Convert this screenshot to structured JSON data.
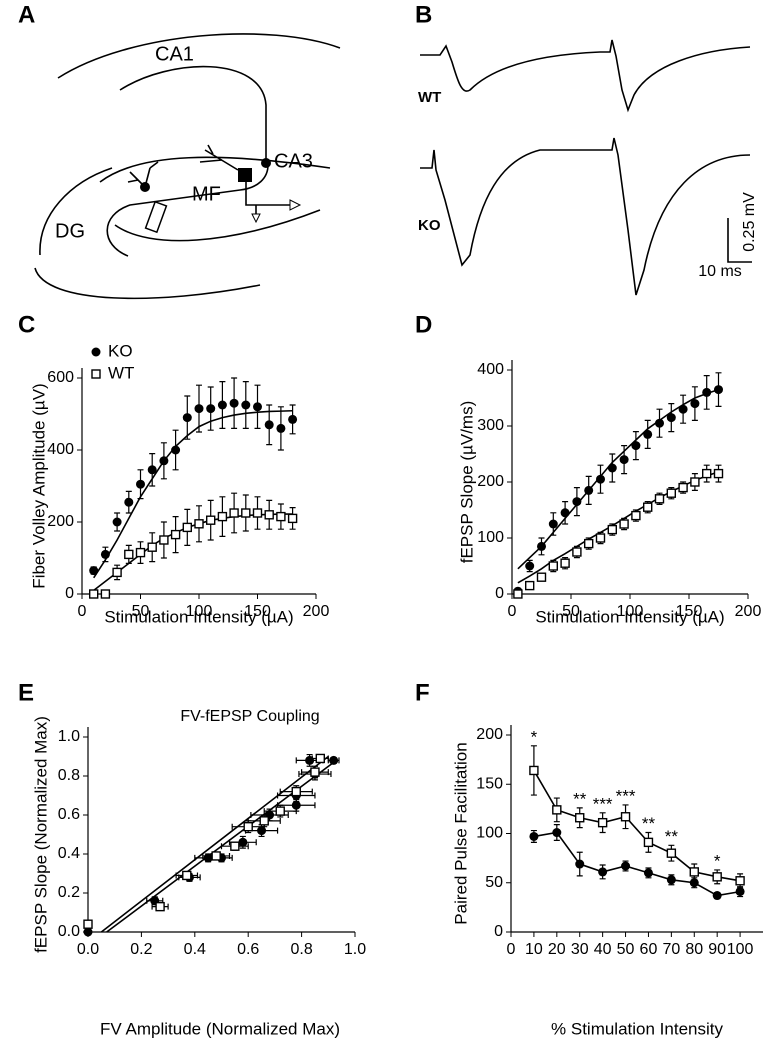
{
  "panel_labels": [
    "A",
    "B",
    "C",
    "D",
    "E",
    "F"
  ],
  "diagram": {
    "labels": [
      "CA1",
      "CA3",
      "MF",
      "DG"
    ]
  },
  "traces": {
    "labels": [
      "WT",
      "KO"
    ],
    "scale_bar": {
      "amplitude": "0.25 mV",
      "time": "10 ms"
    }
  },
  "chart_data": [
    {
      "type": "scatter",
      "xlabel": "Stimulation Intensity (µA)",
      "ylabel": "Fiber Volley Amplitude (µV)",
      "xlim": [
        0,
        200
      ],
      "ylim": [
        0,
        600
      ],
      "xticks": [
        0,
        50,
        100,
        150,
        200
      ],
      "yticks": [
        0,
        200,
        400,
        600
      ],
      "legend": "upper left",
      "x": [
        10,
        20,
        30,
        40,
        50,
        60,
        70,
        80,
        90,
        100,
        110,
        120,
        130,
        140,
        150,
        160,
        170,
        180
      ],
      "series": [
        {
          "name": "KO",
          "color": "#000000",
          "marker": "circle",
          "values": [
            65,
            110,
            200,
            255,
            305,
            345,
            370,
            400,
            490,
            515,
            515,
            525,
            530,
            525,
            520,
            470,
            460,
            485
          ],
          "yerr": [
            10,
            20,
            25,
            30,
            40,
            45,
            50,
            55,
            60,
            65,
            60,
            65,
            70,
            65,
            60,
            55,
            60,
            40
          ],
          "fit": [
            45,
            95,
            150,
            210,
            270,
            320,
            370,
            410,
            440,
            465,
            480,
            490,
            497,
            502,
            505,
            507,
            508,
            509
          ]
        },
        {
          "name": "WT",
          "color": "#000000",
          "marker": "square",
          "values": [
            0,
            0,
            60,
            110,
            115,
            130,
            150,
            165,
            185,
            195,
            205,
            215,
            225,
            225,
            225,
            220,
            215,
            210
          ],
          "yerr": [
            0,
            0,
            20,
            25,
            30,
            40,
            50,
            50,
            50,
            50,
            55,
            55,
            55,
            50,
            45,
            40,
            35,
            30
          ],
          "fit": [
            10,
            35,
            60,
            85,
            110,
            135,
            155,
            170,
            185,
            195,
            205,
            210,
            215,
            218,
            220,
            221,
            222,
            222
          ]
        }
      ]
    },
    {
      "type": "scatter",
      "xlabel": "Stimulation Intensity (µA)",
      "ylabel": "fEPSP Slope (µV/ms)",
      "xlim": [
        0,
        200
      ],
      "ylim": [
        0,
        400
      ],
      "xticks": [
        0,
        50,
        100,
        150,
        200
      ],
      "yticks": [
        0,
        100,
        200,
        300,
        400
      ],
      "x": [
        5,
        15,
        25,
        35,
        45,
        55,
        65,
        75,
        85,
        95,
        105,
        115,
        125,
        135,
        145,
        155,
        165,
        175
      ],
      "series": [
        {
          "color": "#000000",
          "marker": "circle",
          "values": [
            5,
            50,
            85,
            125,
            145,
            165,
            185,
            205,
            225,
            240,
            265,
            285,
            305,
            315,
            330,
            340,
            360,
            365
          ],
          "yerr": [
            5,
            10,
            15,
            20,
            20,
            25,
            25,
            25,
            25,
            25,
            25,
            25,
            25,
            25,
            25,
            30,
            30,
            30
          ],
          "fit": [
            45,
            65,
            85,
            110,
            135,
            160,
            185,
            210,
            235,
            255,
            275,
            295,
            310,
            325,
            338,
            350,
            358,
            365
          ]
        },
        {
          "color": "#000000",
          "marker": "square",
          "values": [
            0,
            15,
            30,
            50,
            55,
            75,
            90,
            100,
            115,
            125,
            140,
            155,
            170,
            180,
            190,
            200,
            215,
            215
          ],
          "yerr": [
            5,
            5,
            5,
            10,
            10,
            10,
            10,
            10,
            10,
            10,
            10,
            10,
            10,
            10,
            10,
            15,
            15,
            15
          ],
          "fit": [
            20,
            32,
            45,
            60,
            72,
            85,
            98,
            110,
            122,
            135,
            148,
            160,
            172,
            183,
            193,
            203,
            211,
            218
          ]
        }
      ]
    },
    {
      "type": "scatter",
      "title": "FV-fEPSP Coupling",
      "xlabel": "FV Amplitude (Normalized Max)",
      "ylabel": "fEPSP Slope (Normalized Max)",
      "xlim": [
        0,
        1
      ],
      "ylim": [
        0,
        1
      ],
      "xticks": [
        {
          "value": 0,
          "label": "0.0"
        },
        {
          "value": 0.2,
          "label": "0.2"
        },
        {
          "value": 0.4,
          "label": "0.4"
        },
        {
          "value": 0.6,
          "label": "0.6"
        },
        {
          "value": 0.8,
          "label": "0.8"
        },
        {
          "value": 1,
          "label": "1.0"
        }
      ],
      "yticks": [
        {
          "value": 0,
          "label": "0.0"
        },
        {
          "value": 0.2,
          "label": "0.2"
        },
        {
          "value": 0.4,
          "label": "0.4"
        },
        {
          "value": 0.6,
          "label": "0.6"
        },
        {
          "value": 0.8,
          "label": "0.8"
        },
        {
          "value": 1,
          "label": "1.0"
        }
      ],
      "series": [
        {
          "color": "#000000",
          "marker": "circle",
          "x": [
            0,
            0.25,
            0.38,
            0.45,
            0.5,
            0.58,
            0.65,
            0.68,
            0.78,
            0.78,
            0.85,
            0.83,
            0.92
          ],
          "values": [
            0,
            0.16,
            0.28,
            0.38,
            0.38,
            0.46,
            0.52,
            0.6,
            0.65,
            0.7,
            0.81,
            0.88,
            0.88
          ],
          "xerr": [
            0,
            0.03,
            0.04,
            0.05,
            0.04,
            0.05,
            0.06,
            0.07,
            0.07,
            0.07,
            0.06,
            0.05,
            0.02
          ],
          "yerr": [
            0,
            0.02,
            0.02,
            0.02,
            0.02,
            0.03,
            0.03,
            0.03,
            0.03,
            0.03,
            0.03,
            0.03,
            0.01
          ],
          "fit": {
            "x": [
              0.07,
              0.93
            ],
            "y": [
              0,
              0.88
            ]
          }
        },
        {
          "color": "#000000",
          "marker": "square",
          "x": [
            0,
            0.27,
            0.37,
            0.48,
            0.55,
            0.6,
            0.66,
            0.72,
            0.78,
            0.85,
            0.87
          ],
          "values": [
            0.04,
            0.13,
            0.29,
            0.39,
            0.44,
            0.54,
            0.57,
            0.62,
            0.72,
            0.82,
            0.89
          ],
          "xerr": [
            0,
            0.03,
            0.04,
            0.05,
            0.05,
            0.06,
            0.06,
            0.06,
            0.06,
            0.05,
            0.03
          ],
          "yerr": [
            0,
            0.01,
            0.02,
            0.02,
            0.02,
            0.03,
            0.03,
            0.03,
            0.03,
            0.03,
            0.02
          ],
          "fit": {
            "x": [
              0.05,
              0.9
            ],
            "y": [
              0,
              0.9
            ]
          }
        }
      ]
    },
    {
      "type": "line",
      "xlabel": "% Stimulation Intensity",
      "ylabel": "Paired Pulse Facilitation",
      "xlim": [
        0,
        110
      ],
      "ylim": [
        0,
        200
      ],
      "xticks": [
        0,
        10,
        20,
        30,
        40,
        50,
        60,
        70,
        80,
        90,
        100
      ],
      "yticks": [
        0,
        50,
        100,
        150,
        200
      ],
      "x": [
        10,
        20,
        30,
        40,
        50,
        60,
        70,
        80,
        90,
        100
      ],
      "series": [
        {
          "color": "#000000",
          "marker": "circle",
          "values": [
            97,
            101,
            69,
            61,
            67,
            60,
            53,
            50,
            37,
            41
          ],
          "yerr": [
            6,
            8,
            12,
            7,
            5,
            5,
            5,
            5,
            3,
            5
          ]
        },
        {
          "color": "#000000",
          "marker": "square",
          "values": [
            164,
            124,
            116,
            111,
            117,
            91,
            80,
            61,
            56,
            52
          ],
          "yerr": [
            25,
            12,
            10,
            10,
            12,
            10,
            8,
            8,
            7,
            7
          ]
        }
      ],
      "annotations": [
        {
          "x": 10,
          "text": "*"
        },
        {
          "x": 30,
          "text": "**"
        },
        {
          "x": 40,
          "text": "***"
        },
        {
          "x": 50,
          "text": "***"
        },
        {
          "x": 60,
          "text": "**"
        },
        {
          "x": 70,
          "text": "**"
        },
        {
          "x": 90,
          "text": "*"
        }
      ]
    }
  ]
}
